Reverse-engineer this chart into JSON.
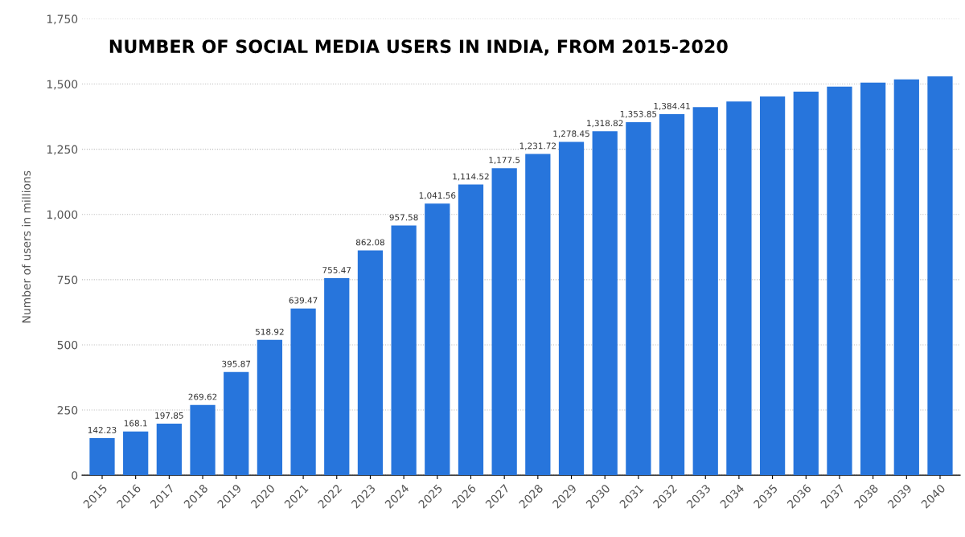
{
  "chart_data": {
    "type": "bar",
    "title": "NUMBER OF SOCIAL MEDIA USERS IN INDIA, FROM 2015-2020",
    "ylabel": "Number of users in millions",
    "categories": [
      "2015",
      "2016",
      "2017",
      "2018",
      "2019",
      "2020",
      "2021",
      "2022",
      "2023",
      "2024",
      "2025",
      "2026",
      "2027",
      "2028",
      "2029",
      "2030",
      "2031",
      "2032",
      "2033",
      "2034",
      "2035",
      "2036",
      "2037",
      "2038",
      "2039",
      "2040"
    ],
    "values": [
      142.23,
      168.1,
      197.85,
      269.62,
      395.87,
      518.92,
      639.47,
      755.47,
      862.08,
      957.58,
      1041.56,
      1114.52,
      1177.5,
      1231.72,
      1278.45,
      1318.82,
      1353.85,
      1384.41,
      1411,
      1433,
      1452,
      1471,
      1490,
      1505,
      1518,
      1529
    ],
    "value_labels": [
      "142.23",
      "168.1",
      "197.85",
      "269.62",
      "395.87",
      "518.92",
      "639.47",
      "755.47",
      "862.08",
      "957.58",
      "1,041.56",
      "1,114.52",
      "1,177.5",
      "1,231.72",
      "1,278.45",
      "1,318.82",
      "1,353.85",
      "1,384.41",
      null,
      null,
      null,
      null,
      null,
      null,
      null,
      null
    ],
    "color": "#2775dc",
    "ylim": [
      0,
      1750
    ],
    "yticks": [
      0,
      {
        "value": 250,
        "label": "250"
      },
      {
        "value": 500,
        "label": "500"
      },
      {
        "value": 750,
        "label": "750"
      },
      {
        "value": 1000,
        "label": "1,000"
      },
      {
        "value": 1250,
        "label": "1,250"
      },
      {
        "value": 1500,
        "label": "1,500"
      },
      {
        "value": 1750,
        "label": "1,750"
      }
    ],
    "grid": "y"
  }
}
